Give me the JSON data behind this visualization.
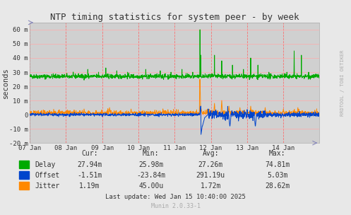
{
  "title": "NTP timing statistics for system peer - by week",
  "ylabel": "seconds",
  "bg_color": "#e8e8e8",
  "plot_bg_color": "#d0d0d0",
  "ylim": [
    -20,
    65
  ],
  "yticks": [
    -20,
    -10,
    0,
    10,
    20,
    30,
    40,
    50,
    60
  ],
  "ytick_labels": [
    "-20 m",
    "-10 m",
    "0",
    "10 m",
    "20 m",
    "30 m",
    "40 m",
    "50 m",
    "60 m"
  ],
  "xtick_positions": [
    0,
    1,
    2,
    3,
    4,
    5,
    6,
    7
  ],
  "xtick_labels": [
    "07 Jan",
    "08 Jan",
    "09 Jan",
    "10 Jan",
    "11 Jan",
    "12 Jan",
    "13 Jan",
    "14 Jan"
  ],
  "vline_positions": [
    0,
    1,
    2,
    3,
    4,
    5,
    6,
    7
  ],
  "delay_color": "#00aa00",
  "offset_color": "#0044cc",
  "jitter_color": "#ff8800",
  "table_headers": [
    "Cur:",
    "Min:",
    "Avg:",
    "Max:"
  ],
  "table_data": [
    [
      "Delay",
      "27.94m",
      "25.98m",
      "27.26m",
      "74.81m"
    ],
    [
      "Offset",
      "-1.51m",
      "-23.84m",
      "291.19u",
      "5.03m"
    ],
    [
      "Jitter",
      "1.19m",
      "45.00u",
      "1.72m",
      "28.62m"
    ]
  ],
  "last_update": "Last update: Wed Jan 15 10:40:00 2025",
  "munin_version": "Munin 2.0.33-1",
  "watermark": "RRDTOOL / TOBI OETIKER"
}
